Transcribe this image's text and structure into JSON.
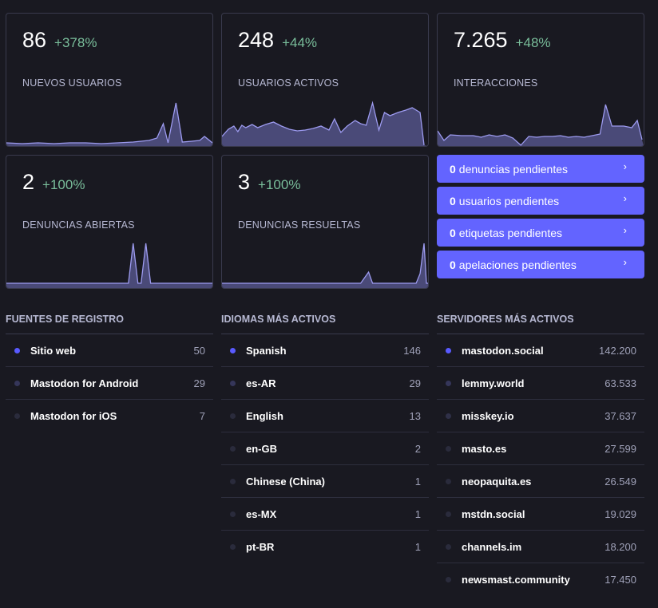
{
  "cards": [
    {
      "value": "86",
      "change": "+378%",
      "label": "NUEVOS USUARIOS"
    },
    {
      "value": "248",
      "change": "+44%",
      "label": "USUARIOS ACTIVOS"
    },
    {
      "value": "7.265",
      "change": "+48%",
      "label": "INTERACCIONES"
    },
    {
      "value": "2",
      "change": "+100%",
      "label": "DENUNCIAS ABIERTAS"
    },
    {
      "value": "3",
      "change": "+100%",
      "label": "DENUNCIAS RESUELTAS"
    }
  ],
  "pending": [
    {
      "count": "0",
      "label": "denuncias pendientes"
    },
    {
      "count": "0",
      "label": "usuarios pendientes"
    },
    {
      "count": "0",
      "label": "etiquetas pendientes"
    },
    {
      "count": "0",
      "label": "apelaciones pendientes"
    }
  ],
  "sources": {
    "title": "FUENTES DE REGISTRO",
    "rows": [
      {
        "name": "Sitio web",
        "value": "50"
      },
      {
        "name": "Mastodon for Android",
        "value": "29"
      },
      {
        "name": "Mastodon for iOS",
        "value": "7"
      }
    ]
  },
  "languages": {
    "title": "IDIOMAS MÁS ACTIVOS",
    "rows": [
      {
        "name": "Spanish",
        "value": "146"
      },
      {
        "name": "es-AR",
        "value": "29"
      },
      {
        "name": "English",
        "value": "13"
      },
      {
        "name": "en-GB",
        "value": "2"
      },
      {
        "name": "Chinese (China)",
        "value": "1"
      },
      {
        "name": "es-MX",
        "value": "1"
      },
      {
        "name": "pt-BR",
        "value": "1"
      }
    ]
  },
  "servers": {
    "title": "SERVIDORES MÁS ACTIVOS",
    "rows": [
      {
        "name": "mastodon.social",
        "value": "142.200"
      },
      {
        "name": "lemmy.world",
        "value": "63.533"
      },
      {
        "name": "misskey.io",
        "value": "37.637"
      },
      {
        "name": "masto.es",
        "value": "27.599"
      },
      {
        "name": "neopaquita.es",
        "value": "26.549"
      },
      {
        "name": "mstdn.social",
        "value": "19.029"
      },
      {
        "name": "channels.im",
        "value": "18.200"
      },
      {
        "name": "newsmast.community",
        "value": "17.450"
      }
    ]
  },
  "colors": {
    "accent": "#6364ff",
    "positive": "#79bd9a",
    "dot_active": "#595aff",
    "dot_inactive": "#2a2b3c"
  },
  "icons": {
    "pending_chevron": "chevron-right-icon"
  }
}
